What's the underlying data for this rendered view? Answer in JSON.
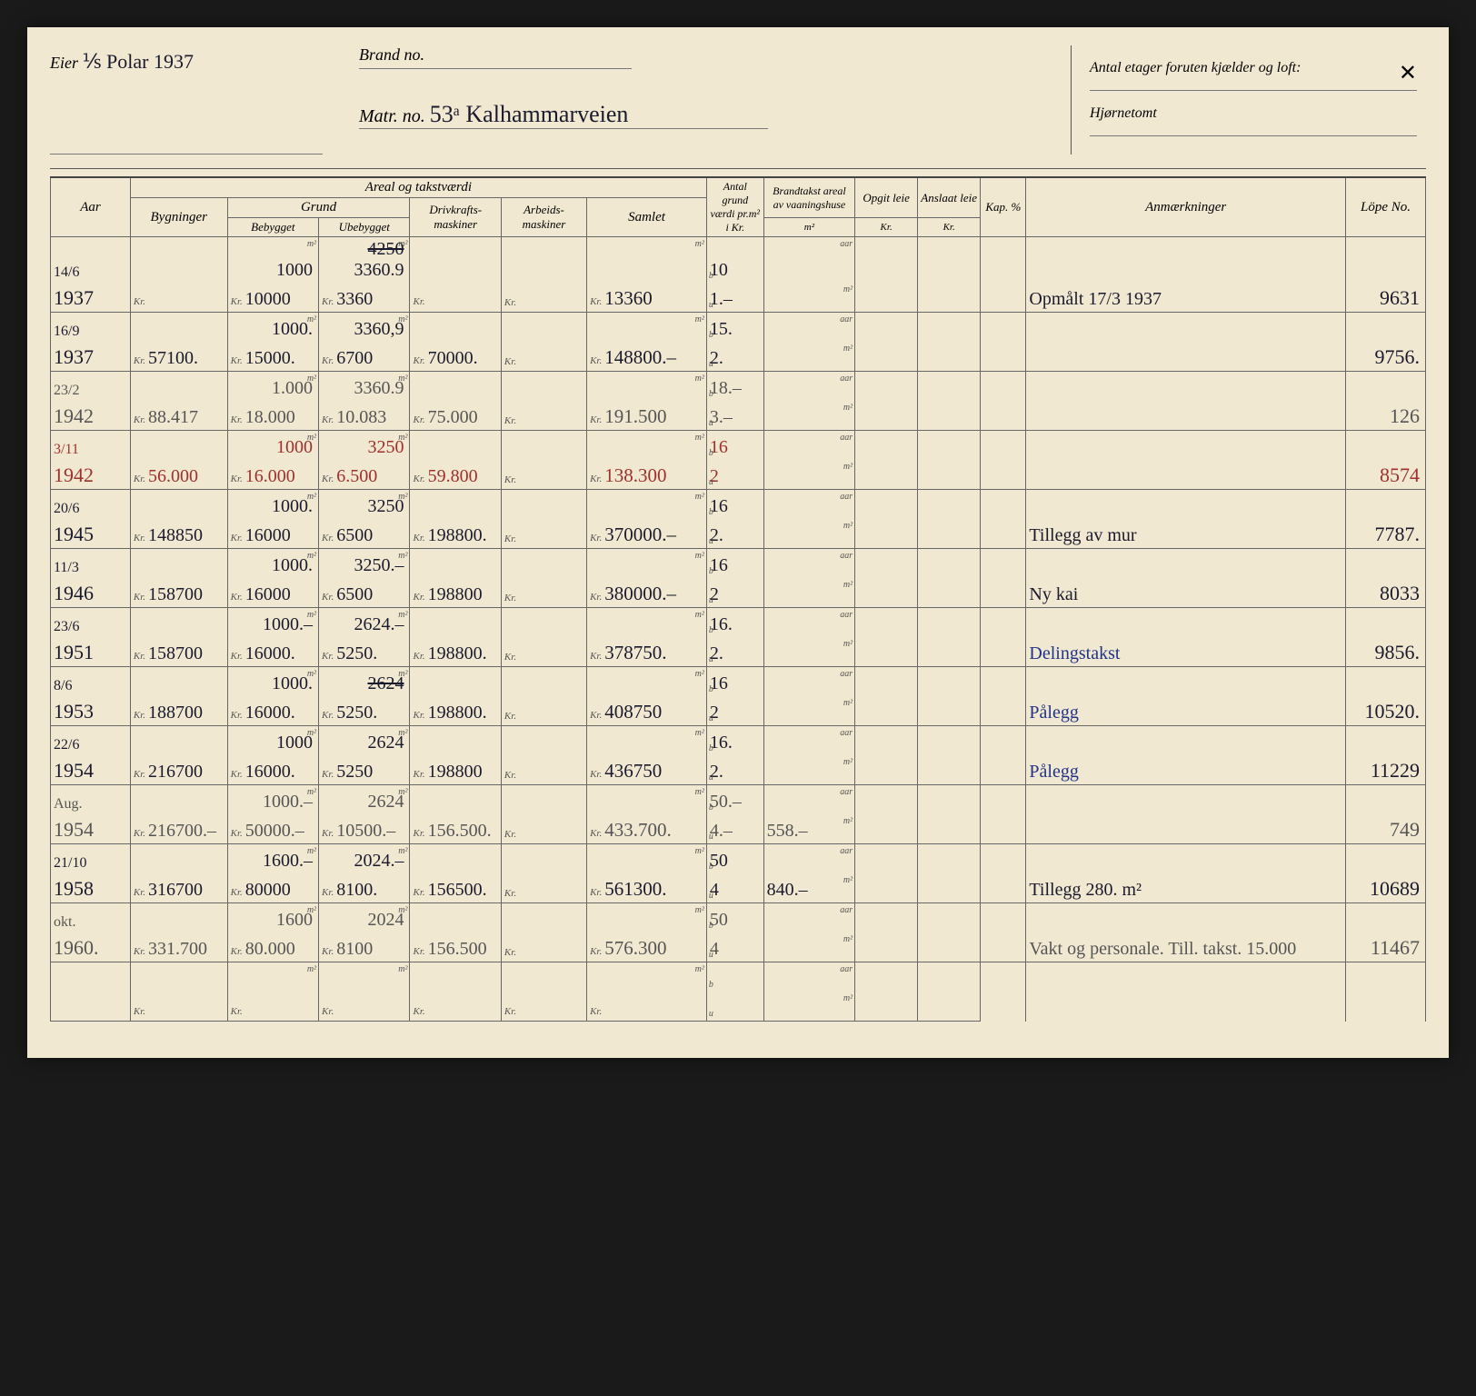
{
  "header": {
    "eier_label": "Eier",
    "eier_value": "⅟s Polar 1937",
    "brand_label": "Brand no.",
    "matr_label": "Matr. no.",
    "matr_value": "53ᵃ Kalhammarveien",
    "antal_label": "Antal etager foruten kjælder og loft:",
    "antal_mark": "✕",
    "hjorne_label": "Hjørnetomt"
  },
  "columns": {
    "aar": "Aar",
    "areal": "Areal og takstværdi",
    "bygninger": "Bygninger",
    "grund": "Grund",
    "bebygget": "Bebygget",
    "ubebygget": "Ubebygget",
    "drivkraft": "Drivkrafts-maskiner",
    "arbeids": "Arbeids-maskiner",
    "samlet": "Samlet",
    "antal": "Antal grund værdi pr.m² i Kr.",
    "brandtakst": "Brandtakst areal av vaaningshuse",
    "opgit": "Opgit leie",
    "anslaat": "Anslaat leie",
    "kap": "Kap. %",
    "anm": "Anmærkninger",
    "lope": "Löpe No.",
    "kr": "Kr.",
    "m2": "m²",
    "aarsub": "aar",
    "b": "b",
    "u": "u"
  },
  "rows": [
    {
      "date": "14/6",
      "year": "1937",
      "byg": "",
      "beb_m": "1000",
      "beb_kr": "10000",
      "ube_m": "4250 3360.9",
      "ube_kr": "3360",
      "ube_strike": true,
      "driv": "",
      "arb": "",
      "sam": "13360",
      "ant_b": "10",
      "ant_u": "1.–",
      "brand": "",
      "anm": "Opmålt 17/3 1937",
      "lope": "9631",
      "cls": ""
    },
    {
      "date": "16/9",
      "year": "1937",
      "byg": "57100.",
      "beb_m": "1000.",
      "beb_kr": "15000.",
      "ube_m": "3360,9",
      "ube_kr": "6700",
      "driv": "70000.",
      "arb": "",
      "sam": "148800.–",
      "ant_b": "15.",
      "ant_u": "2.",
      "brand": "",
      "anm": "",
      "lope": "9756.",
      "cls": ""
    },
    {
      "date": "23/2",
      "year": "1942",
      "byg": "88.417",
      "beb_m": "1.000",
      "beb_kr": "18.000",
      "ube_m": "3360.9",
      "ube_kr": "10.083",
      "driv": "75.000",
      "arb": "",
      "sam": "191.500",
      "ant_b": "18.–",
      "ant_u": "3.–",
      "brand": "",
      "anm": "",
      "lope": "126",
      "cls": "hand-pencil"
    },
    {
      "date": "3/11",
      "year": "1942",
      "byg": "56.000",
      "beb_m": "1000",
      "beb_kr": "16.000",
      "ube_m": "3250",
      "ube_kr": "6.500",
      "driv": "59.800",
      "arb": "",
      "sam": "138.300",
      "ant_b": "16",
      "ant_u": "2",
      "brand": "",
      "anm": "",
      "lope": "8574",
      "cls": "hand-red"
    },
    {
      "date": "20/6",
      "year": "1945",
      "byg": "148850",
      "beb_m": "1000.",
      "beb_kr": "16000",
      "ube_m": "3250",
      "ube_kr": "6500",
      "driv": "198800.",
      "arb": "",
      "sam": "370000.–",
      "ant_b": "16",
      "ant_u": "2.",
      "brand": "",
      "anm": "Tillegg av mur",
      "lope": "7787.",
      "cls": ""
    },
    {
      "date": "11/3",
      "year": "1946",
      "byg": "158700",
      "beb_m": "1000.",
      "beb_kr": "16000",
      "ube_m": "3250.–",
      "ube_kr": "6500",
      "driv": "198800",
      "arb": "",
      "sam": "380000.–",
      "ant_b": "16",
      "ant_u": "2",
      "brand": "",
      "anm": "Ny kai",
      "lope": "8033",
      "cls": ""
    },
    {
      "date": "23/6",
      "year": "1951",
      "byg": "158700",
      "beb_m": "1000.–",
      "beb_kr": "16000.",
      "ube_m": "2624.–",
      "ube_kr": "5250.",
      "driv": "198800.",
      "arb": "",
      "sam": "378750.",
      "ant_b": "16.",
      "ant_u": "2.",
      "brand": "",
      "anm": "Delingstakst",
      "anm_cls": "hand-blue",
      "lope": "9856.",
      "cls": ""
    },
    {
      "date": "8/6",
      "year": "1953",
      "byg": "188700",
      "beb_m": "1000.",
      "beb_kr": "16000.",
      "ube_m": "2624",
      "ube_kr": "5250.",
      "ube_strike": true,
      "driv": "198800.",
      "arb": "",
      "sam": "408750",
      "ant_b": "16",
      "ant_u": "2",
      "brand": "",
      "anm": "Pålegg",
      "anm_cls": "hand-blue",
      "lope": "10520.",
      "cls": ""
    },
    {
      "date": "22/6",
      "year": "1954",
      "byg": "216700",
      "beb_m": "1000",
      "beb_kr": "16000.",
      "ube_m": "2624",
      "ube_kr": "5250",
      "driv": "198800",
      "arb": "",
      "sam": "436750",
      "ant_b": "16.",
      "ant_u": "2.",
      "brand": "",
      "anm": "Pålegg",
      "anm_cls": "hand-blue",
      "lope": "11229",
      "cls": ""
    },
    {
      "date": "Aug.",
      "year": "1954",
      "byg": "216700.–",
      "beb_m": "1000.–",
      "beb_kr": "50000.–",
      "ube_m": "2624",
      "ube_kr": "10500.–",
      "driv": "156.500.",
      "arb": "",
      "sam": "433.700.",
      "ant_b": "50.–",
      "ant_u": "4.–",
      "brand": "558.–",
      "anm": "",
      "lope": "749",
      "cls": "hand-pencil"
    },
    {
      "date": "21/10",
      "year": "1958",
      "byg": "316700",
      "beb_m": "1600.–",
      "beb_kr": "80000",
      "ube_m": "2024.–",
      "ube_kr": "8100.",
      "driv": "156500.",
      "arb": "",
      "sam": "561300.",
      "ant_b": "50",
      "ant_u": "4",
      "brand": "840.–",
      "anm": "Tillegg 280. m²",
      "lope": "10689",
      "cls": ""
    },
    {
      "date": "okt.",
      "year": "1960.",
      "byg": "331.700",
      "beb_m": "1600",
      "beb_kr": "80.000",
      "ube_m": "2024",
      "ube_kr": "8100",
      "driv": "156.500",
      "arb": "",
      "sam": "576.300",
      "ant_b": "50",
      "ant_u": "4",
      "brand": "",
      "anm": "Vakt og personale. Till. takst. 15.000",
      "lope": "11467",
      "cls": "hand-pencil"
    }
  ]
}
